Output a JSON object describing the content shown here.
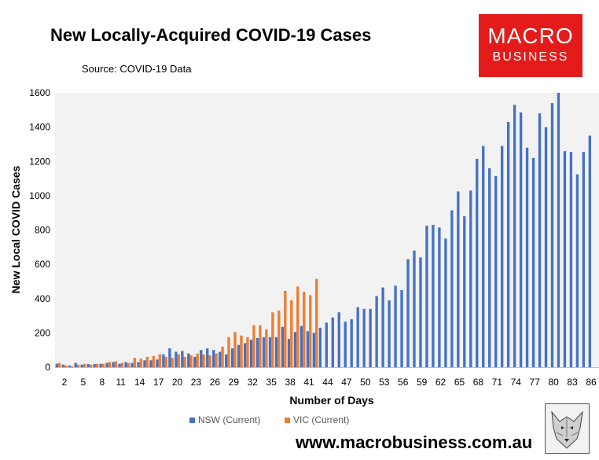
{
  "chart_data": {
    "type": "bar",
    "title": "New Locally-Acquired COVID-19 Cases",
    "subtitle": "Source: COVID-19 Data",
    "xlabel": "Number of Days",
    "ylabel": "New Local COVID Cases",
    "ylim": [
      0,
      1600
    ],
    "yticks": [
      "0",
      "200",
      "400",
      "600",
      "800",
      "1000",
      "1200",
      "1400",
      "1600"
    ],
    "x_tick_labels": [
      "2",
      "5",
      "8",
      "11",
      "14",
      "17",
      "20",
      "23",
      "26",
      "29",
      "32",
      "35",
      "38",
      "41",
      "44",
      "47",
      "50",
      "53",
      "56",
      "59",
      "62",
      "65",
      "68",
      "71",
      "74",
      "77",
      "80",
      "83",
      "86"
    ],
    "days": [
      1,
      2,
      3,
      4,
      5,
      6,
      7,
      8,
      9,
      10,
      11,
      12,
      13,
      14,
      15,
      16,
      17,
      18,
      19,
      20,
      21,
      22,
      23,
      24,
      25,
      26,
      27,
      28,
      29,
      30,
      31,
      32,
      33,
      34,
      35,
      36,
      37,
      38,
      39,
      40,
      41,
      42,
      43,
      44,
      45,
      46,
      47,
      48,
      49,
      50,
      51,
      52,
      53,
      54,
      55,
      56,
      57,
      58,
      59,
      60,
      61,
      62,
      63,
      64,
      65,
      66,
      67,
      68,
      69,
      70,
      71,
      72,
      73,
      74,
      75,
      76,
      77,
      78,
      79,
      80,
      81,
      82,
      83,
      84,
      85,
      86
    ],
    "legend_position": "bottom",
    "grid": false,
    "series": [
      {
        "name": "NSW (Current)",
        "color": "#4472c4",
        "values": [
          20,
          15,
          10,
          25,
          15,
          18,
          18,
          20,
          25,
          30,
          20,
          30,
          25,
          30,
          40,
          40,
          45,
          75,
          110,
          90,
          95,
          80,
          60,
          100,
          110,
          100,
          90,
          75,
          110,
          130,
          140,
          160,
          170,
          175,
          175,
          175,
          235,
          165,
          205,
          240,
          210,
          200,
          230,
          260,
          290,
          320,
          265,
          280,
          350,
          340,
          340,
          415,
          465,
          390,
          475,
          450,
          630,
          680,
          640,
          825,
          830,
          815,
          750,
          915,
          1025,
          880,
          1030,
          1215,
          1290,
          1160,
          1115,
          1290,
          1430,
          1530,
          1485,
          1280,
          1220,
          1480,
          1400,
          1540,
          1600,
          1260,
          1255,
          1125,
          1255,
          1350
        ]
      },
      {
        "name": "VIC (Current)",
        "color": "#ed7d31",
        "values": [
          25,
          10,
          5,
          15,
          20,
          15,
          20,
          20,
          30,
          35,
          25,
          25,
          55,
          50,
          60,
          65,
          75,
          60,
          55,
          75,
          60,
          70,
          80,
          75,
          70,
          80,
          120,
          175,
          205,
          185,
          175,
          245,
          245,
          220,
          320,
          330,
          445,
          390,
          470,
          440,
          420,
          515
        ]
      }
    ]
  },
  "branding": {
    "logo_line1": "MACRO",
    "logo_line2": "BUSINESS",
    "url": "www.macrobusiness.com.au"
  }
}
